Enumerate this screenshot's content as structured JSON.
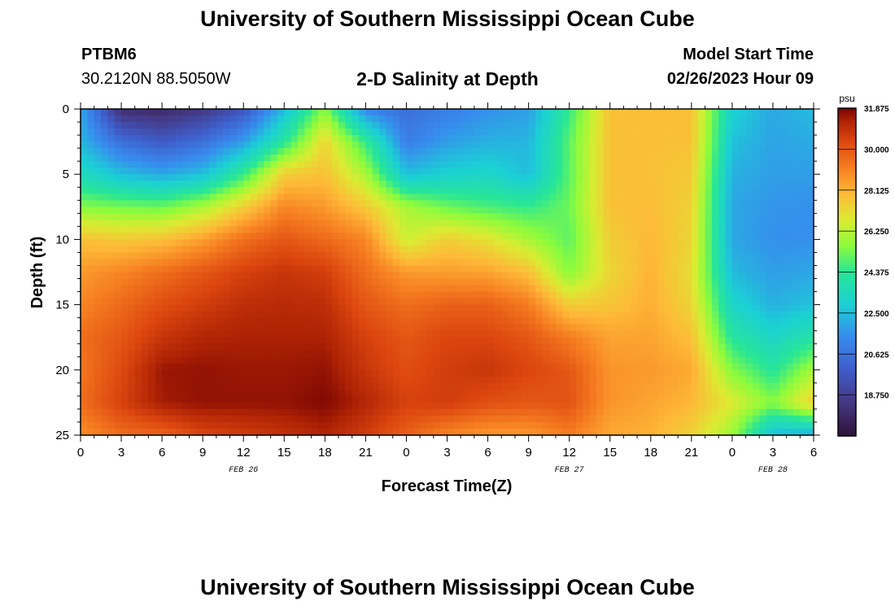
{
  "header": {
    "title": "University of Southern Mississippi Ocean Cube",
    "station_id": "PTBM6",
    "coordinates": "30.2120N  88.5050W",
    "subtitle": "2-D Salinity at Depth",
    "model_start_label": "Model Start Time",
    "model_start_time": "02/26/2023 Hour 09"
  },
  "footer": {
    "title": "University of Southern Mississippi Ocean Cube"
  },
  "chart_data": {
    "type": "heatmap",
    "title": "2-D Salinity at Depth",
    "xlabel": "Forecast Time(Z)",
    "ylabel": "Depth (ft)",
    "units": "psu",
    "x_range_hours": [
      0,
      54
    ],
    "x_tick_labels": [
      "0",
      "3",
      "6",
      "9",
      "12",
      "15",
      "18",
      "21",
      "0",
      "3",
      "6",
      "9",
      "12",
      "15",
      "18",
      "21",
      "0",
      "3",
      "6"
    ],
    "date_labels": [
      {
        "label": "FEB 26",
        "at_hour": 12
      },
      {
        "label": "FEB 27",
        "at_hour": 36
      },
      {
        "label": "FEB 28",
        "at_hour": 51
      }
    ],
    "y_range_ft": [
      0,
      25
    ],
    "y_ticks": [
      0,
      5,
      10,
      15,
      20,
      25
    ],
    "colorbar": {
      "min": 16.875,
      "max": 31.875,
      "tick_labels": [
        "31.875",
        "30.000",
        "28.125",
        "26.250",
        "24.375",
        "22.500",
        "20.625",
        "18.750"
      ]
    },
    "grid_time_hours": [
      0,
      3,
      6,
      9,
      12,
      15,
      18,
      21,
      24,
      27,
      30,
      33,
      36,
      39,
      42,
      45,
      48,
      51,
      54
    ],
    "grid_depth_ft": [
      0,
      2.5,
      5,
      7.5,
      10,
      12.5,
      15,
      17.5,
      20,
      22.5,
      25
    ],
    "salinity_psu": [
      [
        22.0,
        18.0,
        17.8,
        18.4,
        19.6,
        22.4,
        25.6,
        21.2,
        20.5,
        21.0,
        21.5,
        21.8,
        24.5,
        27.8,
        27.9,
        27.8,
        23.0,
        22.0,
        22.5
      ],
      [
        22.3,
        20.5,
        19.8,
        20.5,
        21.8,
        24.2,
        27.3,
        24.5,
        21.0,
        21.8,
        22.2,
        22.3,
        25.0,
        27.8,
        27.8,
        27.8,
        22.6,
        21.9,
        22.1
      ],
      [
        23.5,
        22.5,
        22.0,
        22.5,
        24.5,
        27.5,
        27.8,
        26.0,
        22.5,
        23.0,
        23.2,
        22.5,
        25.0,
        27.8,
        27.8,
        27.6,
        22.2,
        21.8,
        21.8
      ],
      [
        25.5,
        25.3,
        25.2,
        26.0,
        27.5,
        29.0,
        28.6,
        27.6,
        26.0,
        25.2,
        24.8,
        24.5,
        25.2,
        27.8,
        27.9,
        27.4,
        22.0,
        21.6,
        21.5
      ],
      [
        27.8,
        27.6,
        27.8,
        28.5,
        29.5,
        30.0,
        29.6,
        29.0,
        26.5,
        27.5,
        27.0,
        26.0,
        25.0,
        27.5,
        28.0,
        27.3,
        22.0,
        21.5,
        21.5
      ],
      [
        28.6,
        29.0,
        29.5,
        30.0,
        30.5,
        30.8,
        30.6,
        29.5,
        28.6,
        28.5,
        28.4,
        27.8,
        25.5,
        27.3,
        28.1,
        27.1,
        22.4,
        21.8,
        22.0
      ],
      [
        29.0,
        29.6,
        30.2,
        30.6,
        31.0,
        31.1,
        31.0,
        30.0,
        29.5,
        29.8,
        29.8,
        29.2,
        27.5,
        27.7,
        28.2,
        27.3,
        23.2,
        22.2,
        22.6
      ],
      [
        29.5,
        30.0,
        30.8,
        31.2,
        31.3,
        31.3,
        31.3,
        30.5,
        30.0,
        30.4,
        30.4,
        30.0,
        29.2,
        28.4,
        28.4,
        27.8,
        24.2,
        23.2,
        24.0
      ],
      [
        29.3,
        30.3,
        31.5,
        31.6,
        31.5,
        31.5,
        31.6,
        30.8,
        30.2,
        30.6,
        30.8,
        30.4,
        30.0,
        28.7,
        28.6,
        28.3,
        25.5,
        24.2,
        26.0
      ],
      [
        29.5,
        30.5,
        31.4,
        31.6,
        31.6,
        31.6,
        31.8,
        31.2,
        30.5,
        30.6,
        30.2,
        30.0,
        30.1,
        28.7,
        28.4,
        28.0,
        26.8,
        25.5,
        27.5
      ],
      [
        28.8,
        29.5,
        29.7,
        30.4,
        30.6,
        30.9,
        31.2,
        30.6,
        29.8,
        29.0,
        28.6,
        28.6,
        29.2,
        28.3,
        28.1,
        27.4,
        25.8,
        22.4,
        22.0
      ]
    ]
  }
}
